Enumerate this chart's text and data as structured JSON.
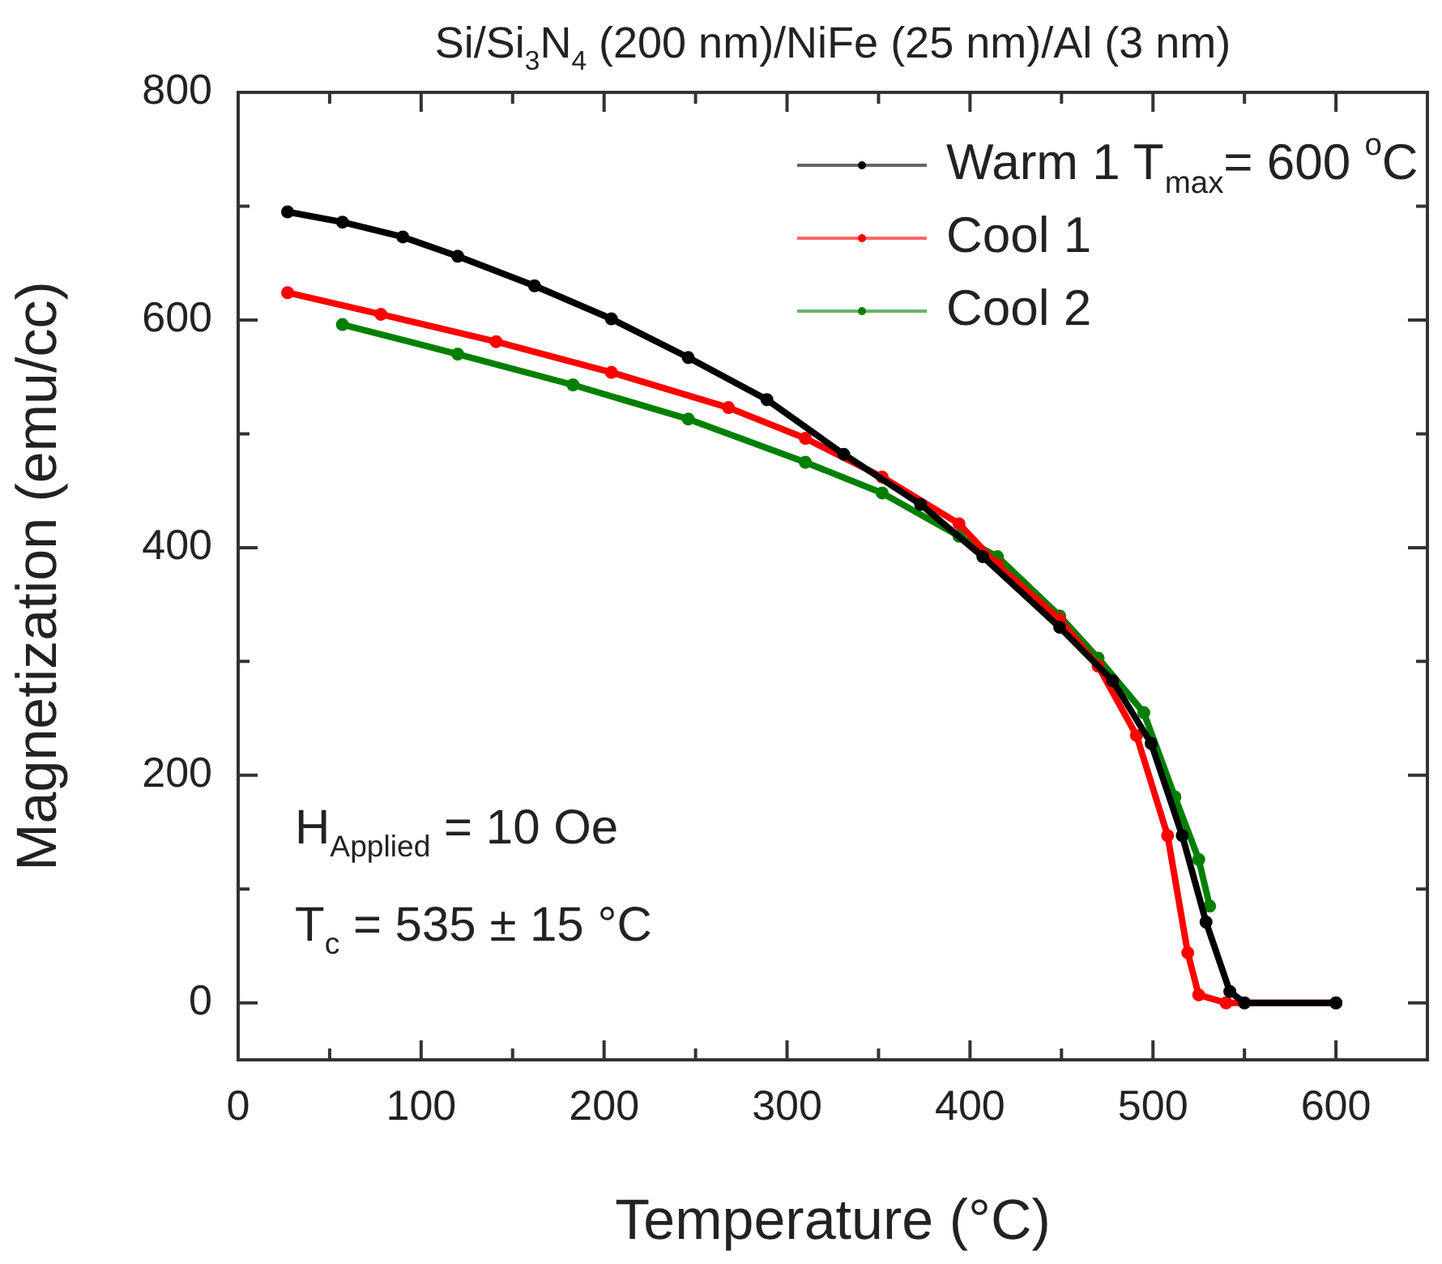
{
  "chart_data": {
    "type": "line",
    "title": "Si/Si$_{3}$N$_{4}$ (200 nm)/NiFe (25 nm)/Al (3 nm)",
    "xlabel": "Temperature (°C)",
    "ylabel": "Magnetization (emu/cc)",
    "xlim": [
      0,
      650
    ],
    "xticks": [
      0,
      {
        "value": 50,
        "label": null
      },
      100,
      {
        "value": 150,
        "label": null
      },
      200,
      {
        "value": 250,
        "label": null
      },
      300,
      {
        "value": 350,
        "label": null
      },
      400,
      {
        "value": 450,
        "label": null
      },
      500,
      {
        "value": 550,
        "label": null
      },
      600
    ],
    "ylim": [
      -50,
      800
    ],
    "yticks": [
      0,
      {
        "value": 100,
        "label": null
      },
      200,
      {
        "value": 300,
        "label": null
      },
      400,
      {
        "value": 500,
        "label": null
      },
      600,
      {
        "value": 700,
        "label": null
      },
      800
    ],
    "grid": false,
    "legend": "top right",
    "marker": "circle",
    "line_style": "solid",
    "annotations": [
      "H$_{Applied}$ = 10 Oe",
      "T$_{c}$ = 535 ± 15 °C"
    ],
    "series": [
      {
        "name": "Warm 1 T$_{max}$= 600 $^{o}$C",
        "color": "#000000",
        "x": [
          27,
          57,
          90,
          120,
          162,
          204,
          246,
          289,
          331,
          373,
          407,
          449,
          478,
          499,
          516,
          529,
          542,
          550,
          600
        ],
        "values": [
          695,
          686,
          673,
          656,
          630,
          601,
          567,
          530,
          482,
          438,
          392,
          330,
          283,
          228,
          147,
          71,
          10,
          0,
          0
        ]
      },
      {
        "name": "Cool 1",
        "color": "#ff0000",
        "x": [
          27,
          78,
          141,
          204,
          268,
          310,
          352,
          394,
          415,
          449,
          470,
          491,
          508,
          519,
          525,
          540,
          600
        ],
        "values": [
          624,
          605,
          581,
          554,
          523,
          496,
          462,
          421,
          385,
          337,
          296,
          235,
          147,
          44,
          7,
          0,
          0
        ]
      },
      {
        "name": "Cool 2",
        "color": "#008000",
        "x": [
          57,
          120,
          183,
          246,
          310,
          352,
          394,
          415,
          449,
          470,
          495,
          512,
          525,
          531
        ],
        "values": [
          596,
          570,
          543,
          513,
          475,
          448,
          410,
          392,
          340,
          303,
          255,
          181,
          126,
          85
        ]
      }
    ]
  }
}
